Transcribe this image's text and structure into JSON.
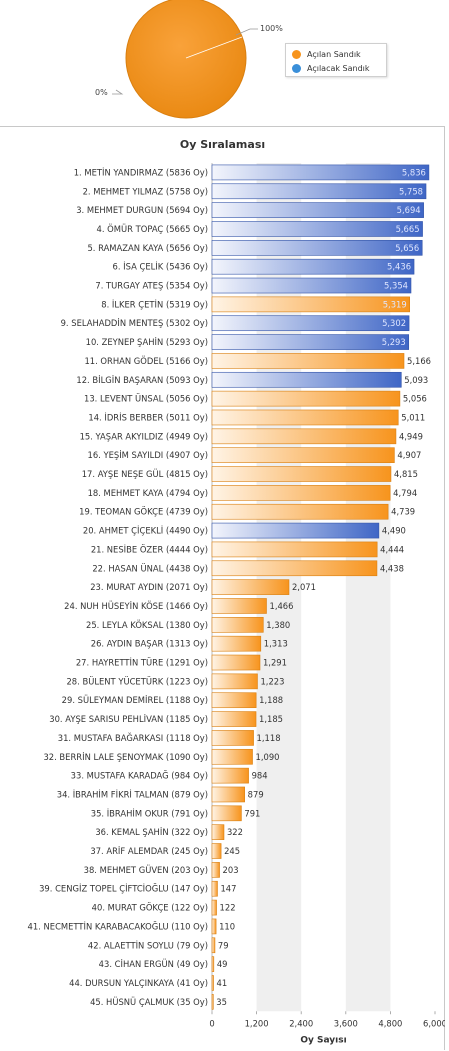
{
  "pie": {
    "slices": [
      {
        "name": "Açılan Sandık",
        "value": 100,
        "label": "100%",
        "color": "#f7941d"
      },
      {
        "name": "Açılacak Sandık",
        "value": 0,
        "label": "0%",
        "color": "#3a8fd9"
      }
    ]
  },
  "chart_data": {
    "type": "bar",
    "orientation": "horizontal",
    "title": "Oy Sıralaması",
    "xlabel": "Oy Sayısı",
    "xlim": [
      0,
      6000
    ],
    "xticks": [
      "0",
      "1,200",
      "2,400",
      "3,600",
      "4,800",
      "6,000"
    ],
    "xtick_values": [
      0,
      1200,
      2400,
      3600,
      4800,
      6000
    ],
    "grid": "alternating vertical bands",
    "colors": {
      "blue": "#3f66c6",
      "orange": "#f7941d"
    },
    "categories": [
      "1. METİN YANDIRMAZ (5836 Oy)",
      "2. MEHMET YILMAZ (5758 Oy)",
      "3. MEHMET DURGUN (5694 Oy)",
      "4. ÖMÜR TOPAÇ (5665 Oy)",
      "5. RAMAZAN KAYA (5656 Oy)",
      "6. İSA ÇELİK (5436 Oy)",
      "7. TURGAY ATEŞ (5354 Oy)",
      "8. İLKER ÇETİN (5319 Oy)",
      "9. SELAHADDİN MENTEŞ (5302 Oy)",
      "10. ZEYNEP ŞAHİN (5293 Oy)",
      "11. ORHAN GÖDEL (5166 Oy)",
      "12. BİLGİN BAŞARAN (5093 Oy)",
      "13. LEVENT ÜNSAL (5056 Oy)",
      "14. İDRİS BERBER (5011 Oy)",
      "15. YAŞAR AKYILDIZ (4949 Oy)",
      "16. YEŞİM SAYILDI (4907 Oy)",
      "17. AYŞE NEŞE GÜL (4815 Oy)",
      "18. MEHMET KAYA (4794 Oy)",
      "19. TEOMAN GÖKÇE (4739 Oy)",
      "20. AHMET ÇİÇEKLİ (4490 Oy)",
      "21. NESİBE ÖZER (4444 Oy)",
      "22. HASAN ÜNAL (4438 Oy)",
      "23. MURAT AYDIN (2071 Oy)",
      "24. NUH HÜSEYİN KÖSE (1466 Oy)",
      "25. LEYLA KÖKSAL (1380 Oy)",
      "26. AYDIN BAŞAR (1313 Oy)",
      "27. HAYRETTİN TÜRE (1291 Oy)",
      "28. BÜLENT YÜCETÜRK (1223 Oy)",
      "29. SÜLEYMAN DEMİREL (1188 Oy)",
      "30. AYŞE SARISU PEHLİVAN (1185 Oy)",
      "31. MUSTAFA BAĞARKASI (1118 Oy)",
      "32. BERRİN LALE ŞENOYMAK (1090 Oy)",
      "33. MUSTAFA KARADAĞ (984 Oy)",
      "34. İBRAHİM FİKRİ TALMAN (879 Oy)",
      "35. İBRAHİM OKUR (791 Oy)",
      "36. KEMAL ŞAHİN (322 Oy)",
      "37. ARİF ALEMDAR (245 Oy)",
      "38. MEHMET GÜVEN (203 Oy)",
      "39. CENGİZ TOPEL ÇİFTCİOĞLU (147 Oy)",
      "40. MURAT GÖKÇE (122 Oy)",
      "41. NECMETTİN KARABACAKOĞLU (110 Oy)",
      "42. ALAETTİN SOYLU (79 Oy)",
      "43. CİHAN ERGÜN (49 Oy)",
      "44. DURSUN YALÇINKAYA (41 Oy)",
      "45. HÜSNÜ ÇALMUK (35 Oy)"
    ],
    "values": [
      5836,
      5758,
      5694,
      5665,
      5656,
      5436,
      5354,
      5319,
      5302,
      5293,
      5166,
      5093,
      5056,
      5011,
      4949,
      4907,
      4815,
      4794,
      4739,
      4490,
      4444,
      4438,
      2071,
      1466,
      1380,
      1313,
      1291,
      1223,
      1188,
      1185,
      1118,
      1090,
      984,
      879,
      791,
      322,
      245,
      203,
      147,
      122,
      110,
      79,
      49,
      41,
      35
    ],
    "value_labels": [
      "5,836",
      "5,758",
      "5,694",
      "5,665",
      "5,656",
      "5,436",
      "5,354",
      "5,319",
      "5,302",
      "5,293",
      "5,166",
      "5,093",
      "5,056",
      "5,011",
      "4,949",
      "4,907",
      "4,815",
      "4,794",
      "4,739",
      "4,490",
      "4,444",
      "4,438",
      "2,071",
      "1,466",
      "1,380",
      "1,313",
      "1,291",
      "1,223",
      "1,188",
      "1,185",
      "1,118",
      "1,090",
      "984",
      "879",
      "791",
      "322",
      "245",
      "203",
      "147",
      "122",
      "110",
      "79",
      "49",
      "41",
      "35"
    ],
    "bar_colors": [
      "blue",
      "blue",
      "blue",
      "blue",
      "blue",
      "blue",
      "blue",
      "orange",
      "blue",
      "blue",
      "orange",
      "blue",
      "orange",
      "orange",
      "orange",
      "orange",
      "orange",
      "orange",
      "orange",
      "blue",
      "orange",
      "orange",
      "orange",
      "orange",
      "orange",
      "orange",
      "orange",
      "orange",
      "orange",
      "orange",
      "orange",
      "orange",
      "orange",
      "orange",
      "orange",
      "orange",
      "orange",
      "orange",
      "orange",
      "orange",
      "orange",
      "orange",
      "orange",
      "orange",
      "orange"
    ]
  }
}
